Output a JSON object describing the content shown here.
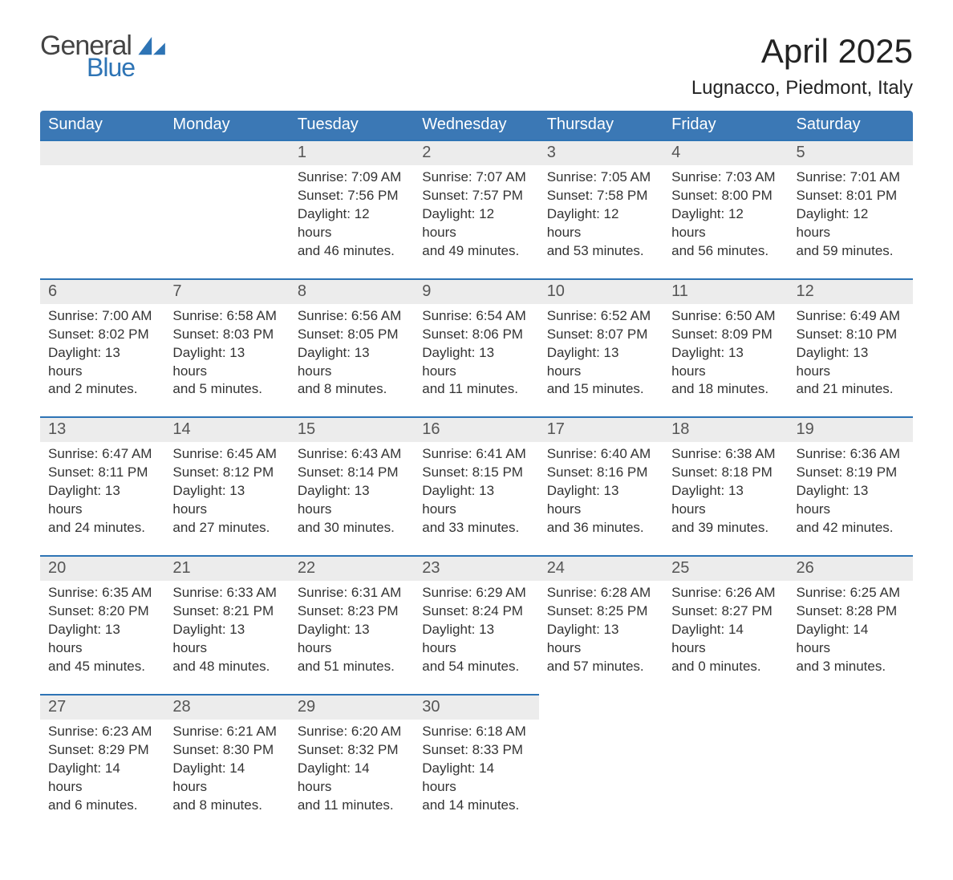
{
  "logo": {
    "word1": "General",
    "word2": "Blue"
  },
  "title": "April 2025",
  "location": "Lugnacco, Piedmont, Italy",
  "colors": {
    "header_bg": "#3b78b5",
    "accent": "#2e74b5",
    "band": "#ececec",
    "page_bg": "#ffffff",
    "text": "#333333"
  },
  "weekdays": [
    "Sunday",
    "Monday",
    "Tuesday",
    "Wednesday",
    "Thursday",
    "Friday",
    "Saturday"
  ],
  "calendar": {
    "leading_blanks": 2,
    "days": [
      {
        "n": 1,
        "sunrise": "7:09 AM",
        "sunset": "7:56 PM",
        "dl_h": 12,
        "dl_m": 46
      },
      {
        "n": 2,
        "sunrise": "7:07 AM",
        "sunset": "7:57 PM",
        "dl_h": 12,
        "dl_m": 49
      },
      {
        "n": 3,
        "sunrise": "7:05 AM",
        "sunset": "7:58 PM",
        "dl_h": 12,
        "dl_m": 53
      },
      {
        "n": 4,
        "sunrise": "7:03 AM",
        "sunset": "8:00 PM",
        "dl_h": 12,
        "dl_m": 56
      },
      {
        "n": 5,
        "sunrise": "7:01 AM",
        "sunset": "8:01 PM",
        "dl_h": 12,
        "dl_m": 59
      },
      {
        "n": 6,
        "sunrise": "7:00 AM",
        "sunset": "8:02 PM",
        "dl_h": 13,
        "dl_m": 2
      },
      {
        "n": 7,
        "sunrise": "6:58 AM",
        "sunset": "8:03 PM",
        "dl_h": 13,
        "dl_m": 5
      },
      {
        "n": 8,
        "sunrise": "6:56 AM",
        "sunset": "8:05 PM",
        "dl_h": 13,
        "dl_m": 8
      },
      {
        "n": 9,
        "sunrise": "6:54 AM",
        "sunset": "8:06 PM",
        "dl_h": 13,
        "dl_m": 11
      },
      {
        "n": 10,
        "sunrise": "6:52 AM",
        "sunset": "8:07 PM",
        "dl_h": 13,
        "dl_m": 15
      },
      {
        "n": 11,
        "sunrise": "6:50 AM",
        "sunset": "8:09 PM",
        "dl_h": 13,
        "dl_m": 18
      },
      {
        "n": 12,
        "sunrise": "6:49 AM",
        "sunset": "8:10 PM",
        "dl_h": 13,
        "dl_m": 21
      },
      {
        "n": 13,
        "sunrise": "6:47 AM",
        "sunset": "8:11 PM",
        "dl_h": 13,
        "dl_m": 24
      },
      {
        "n": 14,
        "sunrise": "6:45 AM",
        "sunset": "8:12 PM",
        "dl_h": 13,
        "dl_m": 27
      },
      {
        "n": 15,
        "sunrise": "6:43 AM",
        "sunset": "8:14 PM",
        "dl_h": 13,
        "dl_m": 30
      },
      {
        "n": 16,
        "sunrise": "6:41 AM",
        "sunset": "8:15 PM",
        "dl_h": 13,
        "dl_m": 33
      },
      {
        "n": 17,
        "sunrise": "6:40 AM",
        "sunset": "8:16 PM",
        "dl_h": 13,
        "dl_m": 36
      },
      {
        "n": 18,
        "sunrise": "6:38 AM",
        "sunset": "8:18 PM",
        "dl_h": 13,
        "dl_m": 39
      },
      {
        "n": 19,
        "sunrise": "6:36 AM",
        "sunset": "8:19 PM",
        "dl_h": 13,
        "dl_m": 42
      },
      {
        "n": 20,
        "sunrise": "6:35 AM",
        "sunset": "8:20 PM",
        "dl_h": 13,
        "dl_m": 45
      },
      {
        "n": 21,
        "sunrise": "6:33 AM",
        "sunset": "8:21 PM",
        "dl_h": 13,
        "dl_m": 48
      },
      {
        "n": 22,
        "sunrise": "6:31 AM",
        "sunset": "8:23 PM",
        "dl_h": 13,
        "dl_m": 51
      },
      {
        "n": 23,
        "sunrise": "6:29 AM",
        "sunset": "8:24 PM",
        "dl_h": 13,
        "dl_m": 54
      },
      {
        "n": 24,
        "sunrise": "6:28 AM",
        "sunset": "8:25 PM",
        "dl_h": 13,
        "dl_m": 57
      },
      {
        "n": 25,
        "sunrise": "6:26 AM",
        "sunset": "8:27 PM",
        "dl_h": 14,
        "dl_m": 0
      },
      {
        "n": 26,
        "sunrise": "6:25 AM",
        "sunset": "8:28 PM",
        "dl_h": 14,
        "dl_m": 3
      },
      {
        "n": 27,
        "sunrise": "6:23 AM",
        "sunset": "8:29 PM",
        "dl_h": 14,
        "dl_m": 6
      },
      {
        "n": 28,
        "sunrise": "6:21 AM",
        "sunset": "8:30 PM",
        "dl_h": 14,
        "dl_m": 8
      },
      {
        "n": 29,
        "sunrise": "6:20 AM",
        "sunset": "8:32 PM",
        "dl_h": 14,
        "dl_m": 11
      },
      {
        "n": 30,
        "sunrise": "6:18 AM",
        "sunset": "8:33 PM",
        "dl_h": 14,
        "dl_m": 14
      }
    ]
  },
  "labels": {
    "sunrise": "Sunrise: ",
    "sunset": "Sunset: ",
    "daylight": "Daylight: ",
    "hours": " hours",
    "and": "and ",
    "minutes": " minutes."
  }
}
